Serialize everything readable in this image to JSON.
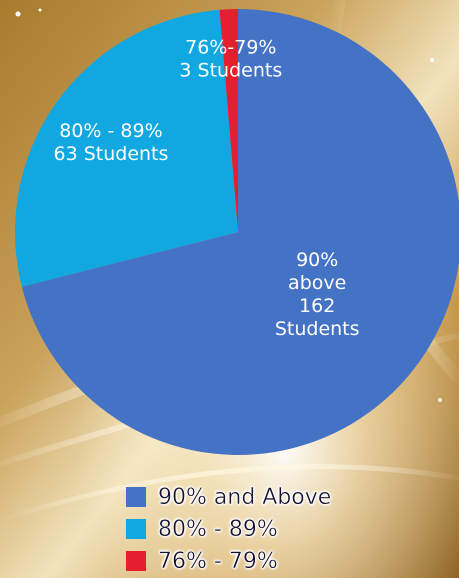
{
  "colors": {
    "blue": "#4472c4",
    "light_blue": "#11a8e2",
    "red": "#e4202e"
  },
  "chart_data": {
    "type": "pie",
    "slices": [
      {
        "label_lines": [
          "90%",
          "above",
          "162",
          "Students"
        ],
        "value": 162,
        "color": "#4472c4",
        "legend": "90% and Above"
      },
      {
        "label_lines": [
          "80% - 89%",
          "63 Students"
        ],
        "value": 63,
        "color": "#11a8e2",
        "legend": "80% - 89%"
      },
      {
        "label_lines": [
          "76%-79%",
          "3 Students"
        ],
        "value": 3,
        "color": "#e4202e",
        "legend": "76% - 79%"
      }
    ],
    "start_angle_deg": 0,
    "direction": "clockwise",
    "legend_position": "bottom"
  }
}
